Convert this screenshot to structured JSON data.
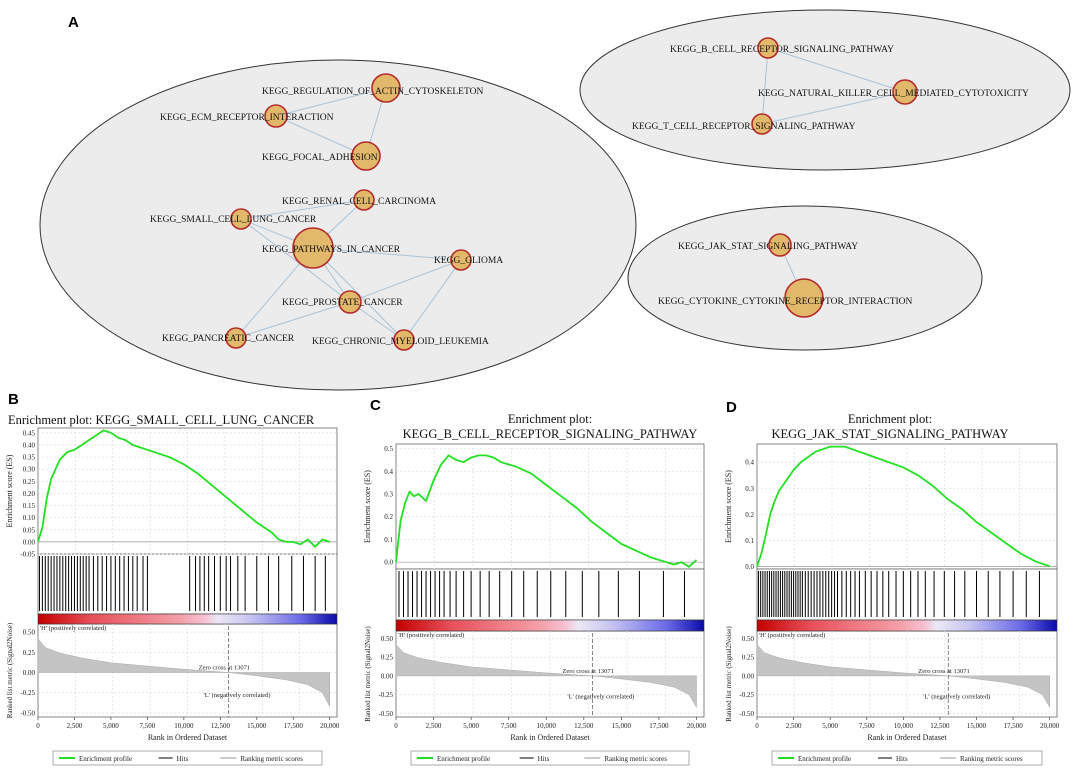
{
  "panels": {
    "A": "A",
    "B": "B",
    "C": "C",
    "D": "D"
  },
  "network": {
    "clusters": [
      {
        "name": "cluster-1",
        "nodes": [
          {
            "id": "actin",
            "label": "KEGG_REGULATION_OF_ACTIN_CYTOSKELETON"
          },
          {
            "id": "ecm",
            "label": "KEGG_ECM_RECEPTOR_INTERACTION"
          },
          {
            "id": "focal",
            "label": "KEGG_FOCAL_ADHESION"
          },
          {
            "id": "renal",
            "label": "KEGG_RENAL_CELL_CARCINOMA"
          },
          {
            "id": "sclc",
            "label": "KEGG_SMALL_CELL_LUNG_CANCER"
          },
          {
            "id": "pathways",
            "label": "KEGG_PATHWAYS_IN_CANCER"
          },
          {
            "id": "glioma",
            "label": "KEGG_GLIOMA"
          },
          {
            "id": "prostate",
            "label": "KEGG_PROSTATE_CANCER"
          },
          {
            "id": "pancreatic",
            "label": "KEGG_PANCREATIC_CANCER"
          },
          {
            "id": "cml",
            "label": "KEGG_CHRONIC_MYELOID_LEUKEMIA"
          }
        ],
        "edges": [
          [
            "actin",
            "ecm"
          ],
          [
            "actin",
            "focal"
          ],
          [
            "ecm",
            "focal"
          ],
          [
            "renal",
            "pathways"
          ],
          [
            "sclc",
            "pathways"
          ],
          [
            "pathways",
            "glioma"
          ],
          [
            "pathways",
            "prostate"
          ],
          [
            "pathways",
            "pancreatic"
          ],
          [
            "pathways",
            "cml"
          ],
          [
            "glioma",
            "prostate"
          ],
          [
            "glioma",
            "cml"
          ],
          [
            "prostate",
            "pancreatic"
          ],
          [
            "prostate",
            "cml"
          ],
          [
            "sclc",
            "prostate"
          ],
          [
            "renal",
            "sclc"
          ]
        ]
      },
      {
        "name": "cluster-2",
        "nodes": [
          {
            "id": "bcell",
            "label": "KEGG_B_CELL_RECEPTOR_SIGNALING_PATHWAY"
          },
          {
            "id": "nk",
            "label": "KEGG_NATURAL_KILLER_CELL_MEDIATED_CYTOTOXICITY"
          },
          {
            "id": "tcell",
            "label": "KEGG_T_CELL_RECEPTOR_SIGNALING_PATHWAY"
          }
        ],
        "edges": [
          [
            "bcell",
            "nk"
          ],
          [
            "bcell",
            "tcell"
          ],
          [
            "nk",
            "tcell"
          ]
        ]
      },
      {
        "name": "cluster-3",
        "nodes": [
          {
            "id": "jak",
            "label": "KEGG_JAK_STAT_SIGNALING_PATHWAY"
          },
          {
            "id": "cytokine",
            "label": "KEGG_CYTOKINE_CYTOKINE_RECEPTOR_INTERACTION"
          }
        ],
        "edges": [
          [
            "jak",
            "cytokine"
          ]
        ]
      }
    ]
  },
  "common": {
    "y_label_es": "Enrichment score (ES)",
    "y_label_rank": "Ranked list metric (Signal2Noise)",
    "x_label": "Rank in Ordered Dataset",
    "pos_label": "'H' (positively correlated)",
    "neg_label": "'L' (negatively correlated)",
    "zero_cross": "Zero cross at 13071",
    "legend": [
      "Enrichment profile",
      "Hits",
      "Ranking metric scores"
    ],
    "x_ticks": [
      "0",
      "2,500",
      "5,000",
      "7,500",
      "10,000",
      "12,500",
      "15,000",
      "17,500",
      "20,000"
    ],
    "rank_ticks": [
      "0.50",
      "0.25",
      "0.00",
      "-0.25",
      "-0.50"
    ]
  },
  "chart_data": [
    {
      "type": "line",
      "panel": "B",
      "title_line1": "Enrichment plot: KEGG_SMALL_CELL_LUNG_CANCER",
      "title_line2": "",
      "ylim": [
        -0.05,
        0.47
      ],
      "y_ticks": [
        "0.45",
        "0.40",
        "0.35",
        "0.30",
        "0.25",
        "0.20",
        "0.15",
        "0.10",
        "0.05",
        "0.00",
        "-0.05"
      ],
      "x": [
        0,
        300,
        600,
        900,
        1200,
        1500,
        2000,
        2500,
        3000,
        3500,
        4000,
        4500,
        5000,
        5500,
        6000,
        6500,
        7000,
        7500,
        8000,
        9000,
        10000,
        11000,
        12000,
        13000,
        14000,
        15000,
        16000,
        16500,
        17000,
        17500,
        18000,
        18500,
        19000,
        19500,
        20000
      ],
      "es": [
        0,
        0.06,
        0.18,
        0.26,
        0.3,
        0.34,
        0.37,
        0.38,
        0.4,
        0.42,
        0.44,
        0.46,
        0.45,
        0.43,
        0.42,
        0.4,
        0.39,
        0.38,
        0.37,
        0.35,
        0.32,
        0.28,
        0.23,
        0.18,
        0.13,
        0.08,
        0.04,
        0.01,
        0.0,
        0.0,
        -0.01,
        0.01,
        -0.02,
        0.01,
        0.0
      ],
      "hits": [
        100,
        300,
        500,
        700,
        900,
        1100,
        1300,
        1500,
        1700,
        1900,
        2100,
        2300,
        2500,
        2700,
        2900,
        3100,
        3300,
        3500,
        3800,
        4100,
        4400,
        4700,
        5000,
        5300,
        5600,
        5900,
        6200,
        6500,
        6800,
        7200,
        7500,
        10400,
        10800,
        11100,
        11400,
        11700,
        12100,
        12500,
        12900,
        13200,
        13700,
        14200,
        15000,
        15800,
        16500,
        17400,
        18200,
        19000,
        19700
      ],
      "pos_fraction": 0.56
    },
    {
      "type": "line",
      "panel": "C",
      "title_line1": "Enrichment plot:",
      "title_line2": "KEGG_B_CELL_RECEPTOR_SIGNALING_PATHWAY",
      "ylim": [
        -0.03,
        0.52
      ],
      "y_ticks": [
        "0.5",
        "0.4",
        "0.3",
        "0.2",
        "0.1",
        "0.0"
      ],
      "x": [
        0,
        300,
        600,
        900,
        1200,
        1500,
        2000,
        2500,
        3000,
        3500,
        4000,
        4500,
        5000,
        5500,
        6000,
        6500,
        7000,
        8000,
        9000,
        10000,
        11000,
        12000,
        13000,
        14000,
        15000,
        16000,
        17000,
        18000,
        18500,
        19000,
        19500,
        20000
      ],
      "es": [
        0,
        0.18,
        0.26,
        0.31,
        0.29,
        0.3,
        0.27,
        0.36,
        0.43,
        0.47,
        0.45,
        0.44,
        0.46,
        0.47,
        0.47,
        0.46,
        0.44,
        0.42,
        0.39,
        0.34,
        0.29,
        0.24,
        0.18,
        0.13,
        0.08,
        0.05,
        0.02,
        0.0,
        -0.01,
        0.0,
        -0.02,
        0.01
      ],
      "hits": [
        200,
        500,
        800,
        1100,
        1400,
        1700,
        2000,
        2300,
        2600,
        2900,
        3200,
        3600,
        4000,
        4500,
        5000,
        5600,
        6200,
        6900,
        7700,
        8500,
        9400,
        10300,
        11300,
        12400,
        13500,
        14800,
        16200,
        17800,
        19200
      ],
      "pos_fraction": 0.55
    },
    {
      "type": "line",
      "panel": "D",
      "title_line1": "Enrichment plot:",
      "title_line2": "KEGG_JAK_STAT_SIGNALING_PATHWAY",
      "ylim": [
        -0.01,
        0.47
      ],
      "y_ticks": [
        "0.4",
        "0.3",
        "0.2",
        "0.1",
        "0.0"
      ],
      "x": [
        0,
        300,
        600,
        900,
        1200,
        1500,
        2000,
        2500,
        3000,
        3500,
        4000,
        4500,
        5000,
        5500,
        6000,
        6500,
        7000,
        7500,
        8000,
        9000,
        10000,
        11000,
        12000,
        13000,
        14000,
        15000,
        16000,
        17000,
        18000,
        19000,
        19500,
        20000
      ],
      "es": [
        0,
        0.05,
        0.12,
        0.2,
        0.25,
        0.29,
        0.33,
        0.37,
        0.4,
        0.42,
        0.44,
        0.45,
        0.46,
        0.46,
        0.46,
        0.45,
        0.44,
        0.43,
        0.42,
        0.4,
        0.38,
        0.35,
        0.31,
        0.26,
        0.22,
        0.17,
        0.13,
        0.09,
        0.05,
        0.02,
        0.01,
        0.0
      ],
      "hits": [
        100,
        250,
        400,
        550,
        700,
        850,
        1000,
        1150,
        1300,
        1450,
        1600,
        1750,
        1900,
        2050,
        2200,
        2350,
        2500,
        2650,
        2800,
        2950,
        3100,
        3300,
        3500,
        3700,
        3900,
        4100,
        4300,
        4500,
        4700,
        4900,
        5100,
        5300,
        5500,
        5800,
        6100,
        6400,
        6700,
        7000,
        7400,
        7800,
        8200,
        8600,
        9000,
        9500,
        10000,
        10500,
        11000,
        11500,
        12100,
        12800,
        13500,
        14200,
        15000,
        15800,
        16600,
        17500,
        18400,
        19300
      ],
      "pos_fraction": 0.56
    }
  ]
}
